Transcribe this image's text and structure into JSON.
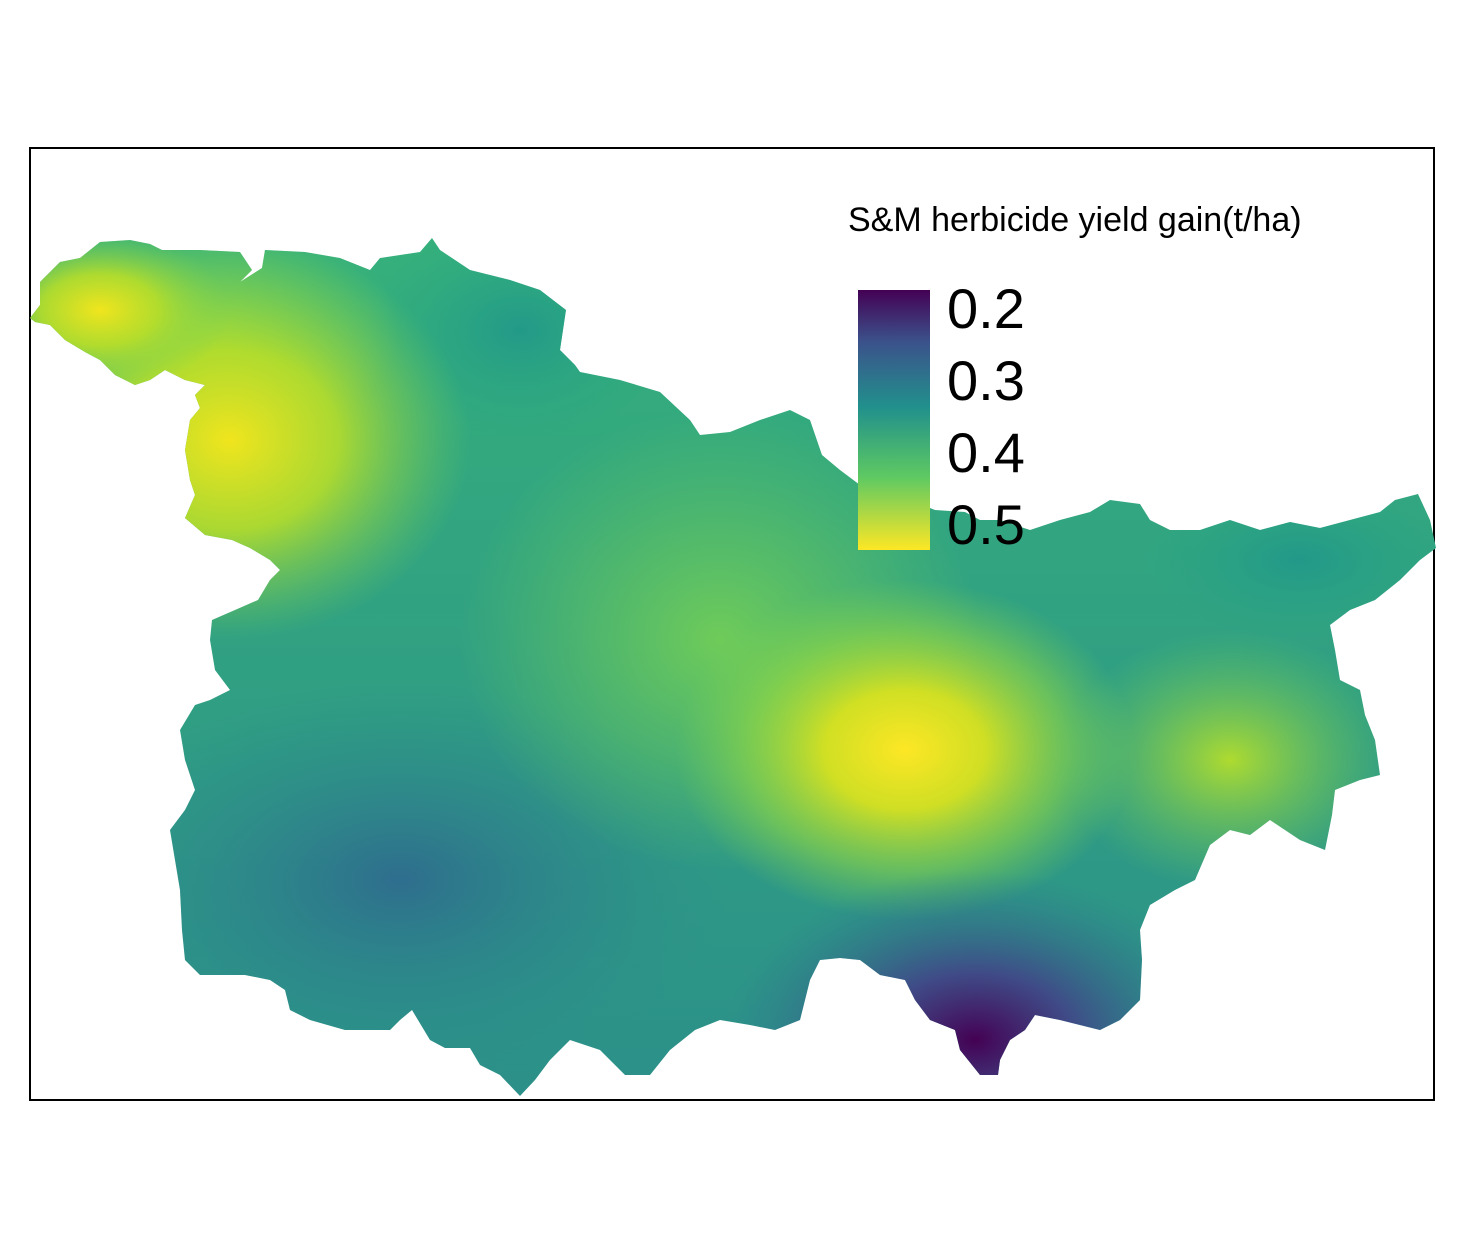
{
  "legend": {
    "title": "S&M herbicide yield gain(t/ha)",
    "ticks": [
      "0.2",
      "0.3",
      "0.4",
      "0.5"
    ],
    "palette": "viridis (reversed)",
    "colors": [
      "#440154",
      "#3b528b",
      "#21908c",
      "#5ec962",
      "#fde725"
    ]
  },
  "map": {
    "panel_border": "#000000",
    "background": "#ffffff",
    "hotspots": [
      "yellow-northwest",
      "yellow-central-east",
      "yellow-east"
    ],
    "lowspots": [
      "purple-south"
    ]
  }
}
